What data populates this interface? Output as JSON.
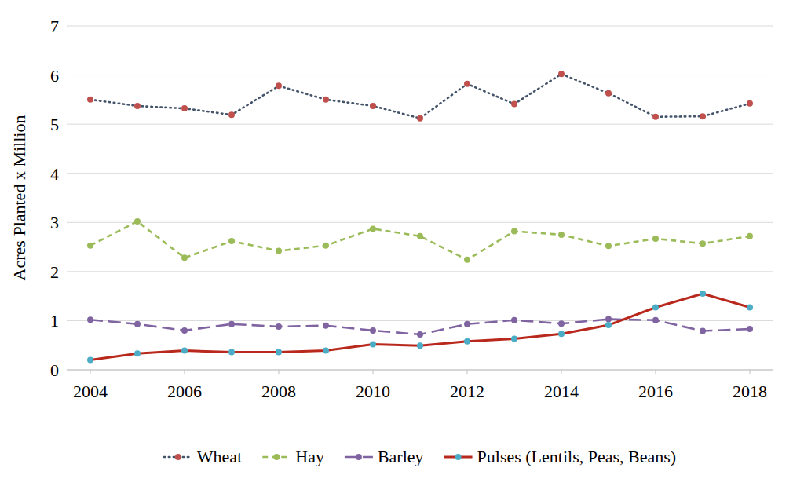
{
  "chart_data": {
    "type": "line",
    "y_label": "Acres Planted x Million",
    "x": [
      2004,
      2005,
      2006,
      2007,
      2008,
      2009,
      2010,
      2011,
      2012,
      2013,
      2014,
      2015,
      2016,
      2017,
      2018
    ],
    "xlim": [
      2003.5,
      2018.5
    ],
    "xticks": [
      2004,
      2006,
      2008,
      2010,
      2012,
      2014,
      2016,
      2018
    ],
    "ylim": [
      0,
      7
    ],
    "yticks": [
      0,
      1,
      2,
      3,
      4,
      5,
      6,
      7
    ],
    "grid": true,
    "legend": "bottom",
    "series": [
      {
        "name": "Wheat",
        "color": "#44546a",
        "line_style": "dotted",
        "marker": "circle",
        "values": [
          5.5,
          5.37,
          5.32,
          5.19,
          5.78,
          5.5,
          5.37,
          5.12,
          5.82,
          5.41,
          6.02,
          5.63,
          5.15,
          5.16,
          5.42
        ]
      },
      {
        "name": "Hay",
        "color": "#9bbb59",
        "line_style": "dashed",
        "marker": "circle",
        "values": [
          2.53,
          3.02,
          2.28,
          2.62,
          2.42,
          2.53,
          2.87,
          2.72,
          2.24,
          2.82,
          2.75,
          2.52,
          2.67,
          2.57,
          2.72
        ]
      },
      {
        "name": "Barley",
        "color": "#8064a2",
        "line_style": "longdash",
        "marker": "circle",
        "values": [
          1.02,
          0.93,
          0.8,
          0.93,
          0.88,
          0.9,
          0.8,
          0.72,
          0.93,
          1.01,
          0.94,
          1.03,
          1.01,
          0.79,
          0.83
        ]
      },
      {
        "name": "Pulses (Lentils, Peas, Beans)",
        "color": "#b8281c",
        "line_style": "solid",
        "marker": "circle",
        "values": [
          0.2,
          0.33,
          0.39,
          0.36,
          0.36,
          0.39,
          0.52,
          0.49,
          0.58,
          0.63,
          0.73,
          0.91,
          1.27,
          1.55,
          1.27
        ]
      }
    ]
  }
}
